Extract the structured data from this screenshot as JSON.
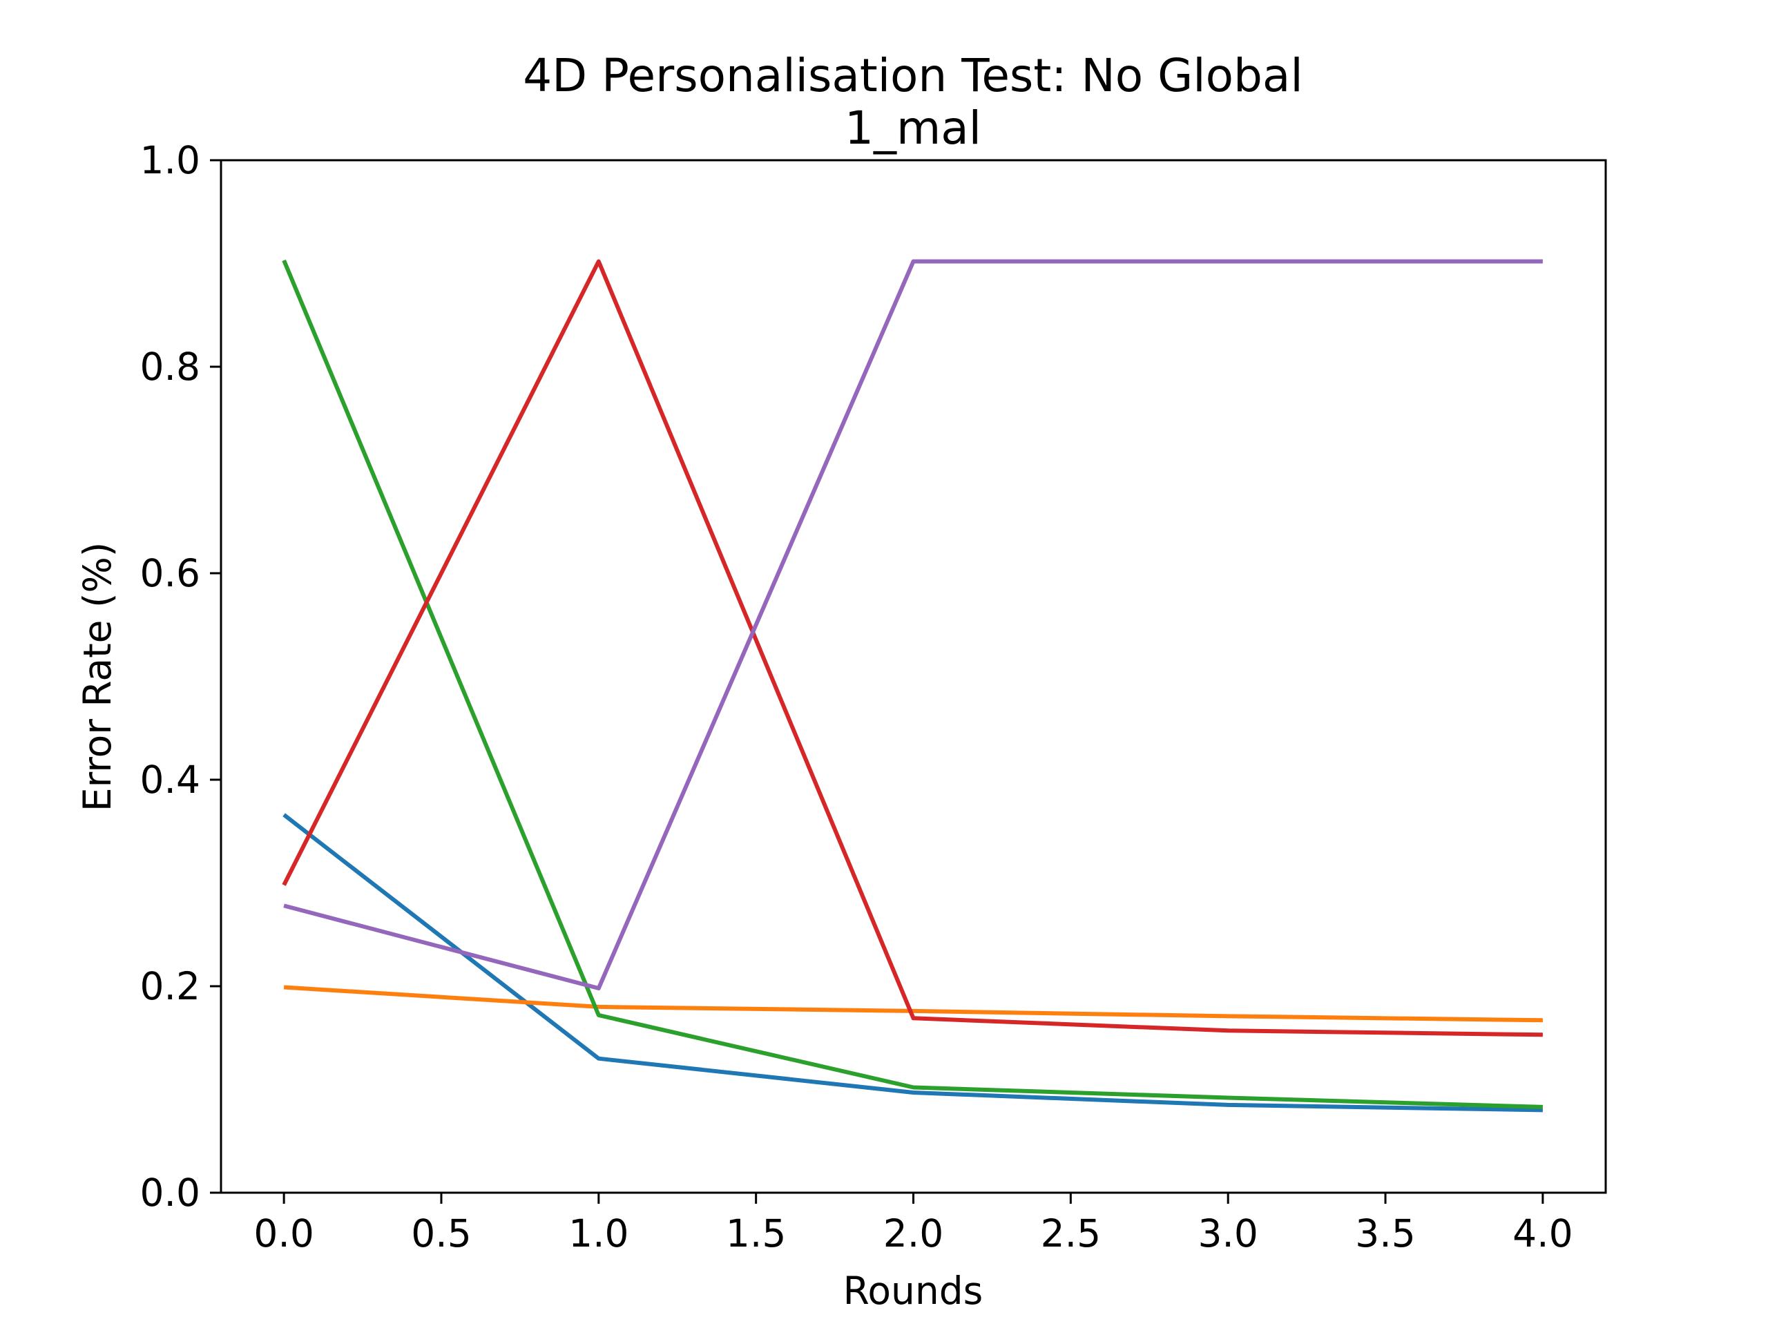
{
  "chart_data": {
    "type": "line",
    "title": "4D Personalisation Test: No Global",
    "subtitle": "1_mal",
    "xlabel": "Rounds",
    "ylabel": "Error Rate (%)",
    "x": [
      0,
      1,
      2,
      3,
      4
    ],
    "xlim": [
      -0.2,
      4.2
    ],
    "ylim": [
      0,
      1
    ],
    "xticks": [
      "0.0",
      "0.5",
      "1.0",
      "1.5",
      "2.0",
      "2.5",
      "3.0",
      "3.5",
      "4.0"
    ],
    "xtick_values": [
      0,
      0.5,
      1,
      1.5,
      2,
      2.5,
      3,
      3.5,
      4
    ],
    "yticks": [
      "0.0",
      "0.2",
      "0.4",
      "0.6",
      "0.8",
      "1.0"
    ],
    "ytick_values": [
      0,
      0.2,
      0.4,
      0.6,
      0.8,
      1.0
    ],
    "grid": false,
    "legend": "none",
    "series": [
      {
        "color": "#1f77b4",
        "values": [
          0.366,
          0.13,
          0.097,
          0.085,
          0.08
        ]
      },
      {
        "color": "#ff7f0e",
        "values": [
          0.199,
          0.18,
          0.176,
          0.171,
          0.167
        ]
      },
      {
        "color": "#2ca02c",
        "values": [
          0.903,
          0.172,
          0.102,
          0.092,
          0.083
        ]
      },
      {
        "color": "#d62728",
        "values": [
          0.298,
          0.902,
          0.169,
          0.157,
          0.153
        ]
      },
      {
        "color": "#9467bd",
        "values": [
          0.278,
          0.198,
          0.902,
          0.902,
          0.902
        ]
      }
    ]
  }
}
